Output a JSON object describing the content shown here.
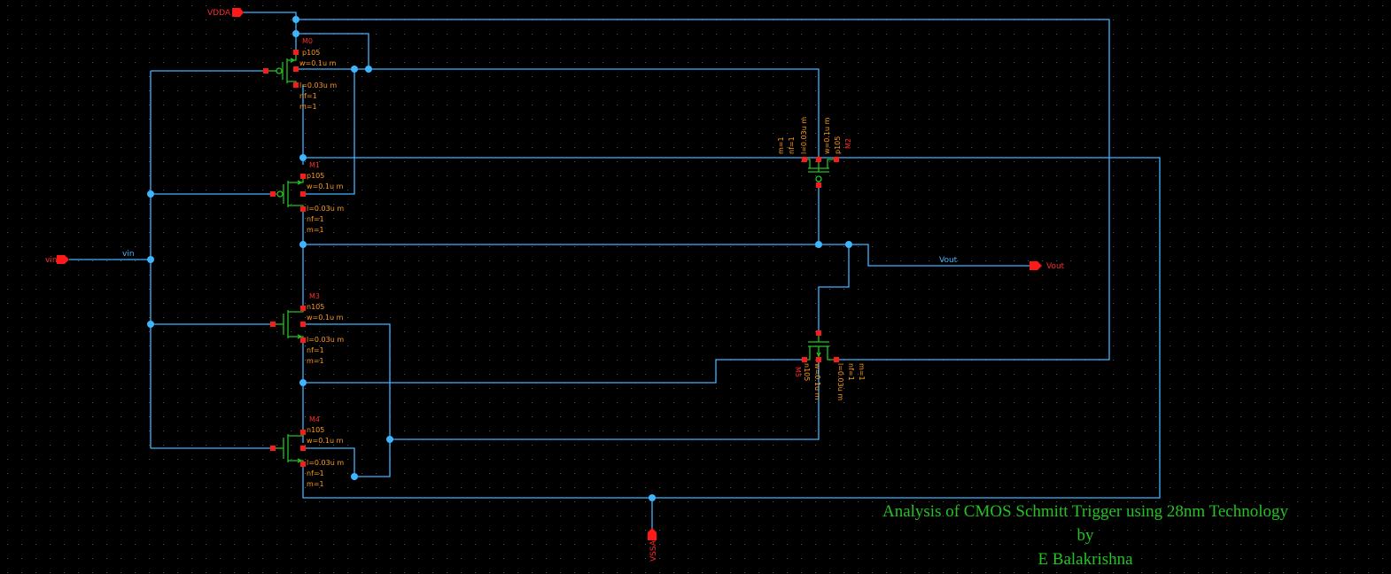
{
  "colors": {
    "background": "#000000",
    "wire": "#3fb5ff",
    "device": "#22c322",
    "pin": "#ff1a1a",
    "param_text": "#ff9a1a",
    "title_text": "#22c322"
  },
  "pins": {
    "vdda": "VDDA",
    "vin": "vin",
    "vout": "Vout",
    "vssa": "VSSA"
  },
  "nets": {
    "vin": "vin",
    "vout": "Vout"
  },
  "devices": {
    "M0": {
      "name": "M0",
      "model": "p105",
      "w": "w=0.1u m",
      "l": "l=0.03u m",
      "nf": "nf=1",
      "m": "m=1"
    },
    "M1": {
      "name": "M1",
      "model": "p105",
      "w": "w=0.1u m",
      "l": "l=0.03u m",
      "nf": "nf=1",
      "m": "m=1"
    },
    "M3": {
      "name": "M3",
      "model": "n105",
      "w": "w=0.1u m",
      "l": "l=0.03u m",
      "nf": "nf=1",
      "m": "m=1"
    },
    "M4": {
      "name": "M4",
      "model": "n105",
      "w": "w=0.1u m",
      "l": "l=0.03u m",
      "nf": "nf=1",
      "m": "m=1"
    },
    "M2": {
      "name": "M2",
      "model": "p105",
      "w": "w=0.1u m",
      "l": "l=0.03u m",
      "nf": "nf=1",
      "m": "m=1"
    },
    "M5": {
      "name": "M5",
      "model": "n105",
      "w": "w=0.1u m",
      "l": "l=0.03u m",
      "nf": "nf=1",
      "m": "m=1"
    }
  },
  "title": {
    "line1": "Analysis of CMOS Schmitt Trigger using 28nm Technology",
    "line2": "by",
    "line3": "E Balakrishna"
  }
}
